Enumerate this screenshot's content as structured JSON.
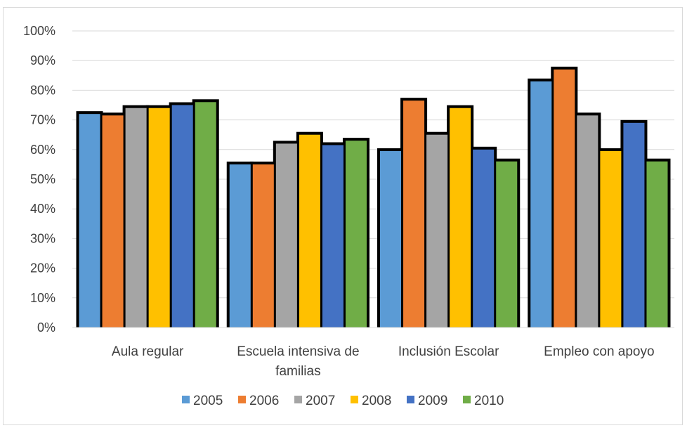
{
  "chart_data": {
    "type": "bar",
    "title": "",
    "xlabel": "",
    "ylabel": "",
    "ylim": [
      0,
      1
    ],
    "y_ticks": [
      "0%",
      "10%",
      "20%",
      "30%",
      "40%",
      "50%",
      "60%",
      "70%",
      "80%",
      "90%",
      "100%"
    ],
    "categories": [
      [
        "Aula regular"
      ],
      [
        "Escuela intensiva de",
        "familias"
      ],
      [
        "Inclusión Escolar"
      ],
      [
        "Empleo con apoyo"
      ]
    ],
    "grid": true,
    "legend_position": "bottom",
    "series": [
      {
        "name": "2005",
        "color": "#5b9bd5",
        "values": [
          0.72,
          0.55,
          0.595,
          0.83
        ]
      },
      {
        "name": "2006",
        "color": "#ed7d31",
        "values": [
          0.715,
          0.55,
          0.765,
          0.87
        ]
      },
      {
        "name": "2007",
        "color": "#a5a5a5",
        "values": [
          0.74,
          0.62,
          0.65,
          0.715
        ]
      },
      {
        "name": "2008",
        "color": "#ffc000",
        "values": [
          0.74,
          0.65,
          0.74,
          0.595
        ]
      },
      {
        "name": "2009",
        "color": "#4472c4",
        "values": [
          0.75,
          0.615,
          0.6,
          0.69
        ]
      },
      {
        "name": "2010",
        "color": "#70ad47",
        "values": [
          0.76,
          0.63,
          0.56,
          0.56
        ]
      }
    ]
  }
}
